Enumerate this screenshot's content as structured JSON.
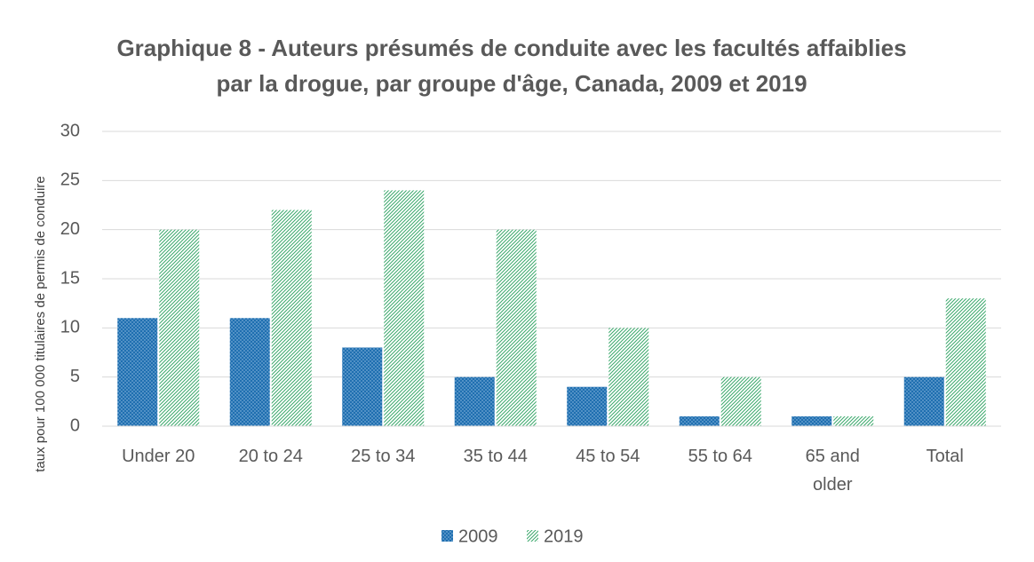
{
  "chart_data": {
    "type": "bar",
    "title": [
      "Graphique 8 - Auteurs présumés de conduite avec les facultés affaiblies",
      "par la drogue, par groupe d'âge, Canada, 2009 et 2019"
    ],
    "y_label": "taux pour 100 000 titulaires de permis de conduire",
    "categories": [
      "Under 20",
      "20 to 24",
      "25 to 34",
      "35 to 44",
      "45 to 54",
      "55 to 64",
      "65 and older",
      "Total"
    ],
    "series": [
      {
        "name": "2009",
        "color": "#1f6fb0",
        "values": [
          11,
          11,
          8,
          5,
          4,
          1,
          1,
          5
        ]
      },
      {
        "name": "2019",
        "color": "#3aa86b",
        "values": [
          20,
          22,
          24,
          20,
          10,
          5,
          1,
          13
        ]
      }
    ],
    "ylim": [
      0,
      30
    ],
    "yticks": [
      0,
      5,
      10,
      15,
      20,
      25,
      30
    ],
    "grid": true,
    "legend": "bottom"
  }
}
